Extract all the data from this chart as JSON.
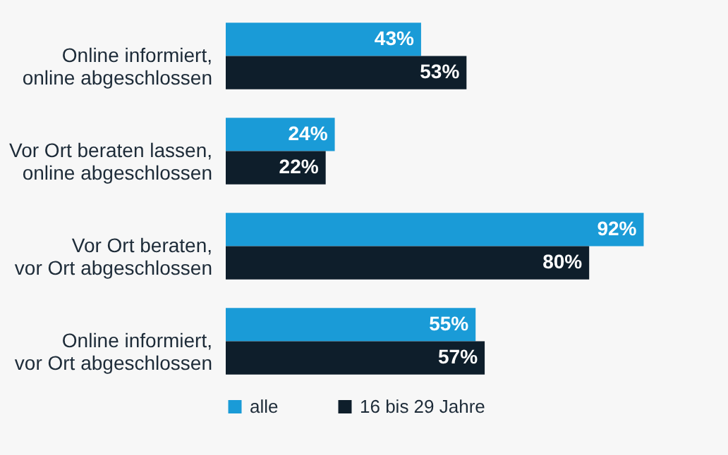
{
  "chart_data": {
    "type": "bar",
    "orientation": "horizontal",
    "categories": [
      "Online informiert, online abgeschlossen",
      "Vor Ort beraten lassen, online abgeschlossen",
      "Vor Ort beraten, vor Ort abgeschlossen",
      "Online informiert, vor Ort abgeschlossen"
    ],
    "series": [
      {
        "name": "alle",
        "color": "#1a9bd7",
        "values": [
          43,
          24,
          92,
          55
        ],
        "value_labels": [
          "43%",
          "24%",
          "92%",
          "55%"
        ]
      },
      {
        "name": "16 bis 29 Jahre",
        "color": "#0e1e2b",
        "values": [
          53,
          22,
          80,
          57
        ],
        "value_labels": [
          "53%",
          "22%",
          "80%",
          "57%"
        ]
      }
    ],
    "legend": "bottom"
  }
}
